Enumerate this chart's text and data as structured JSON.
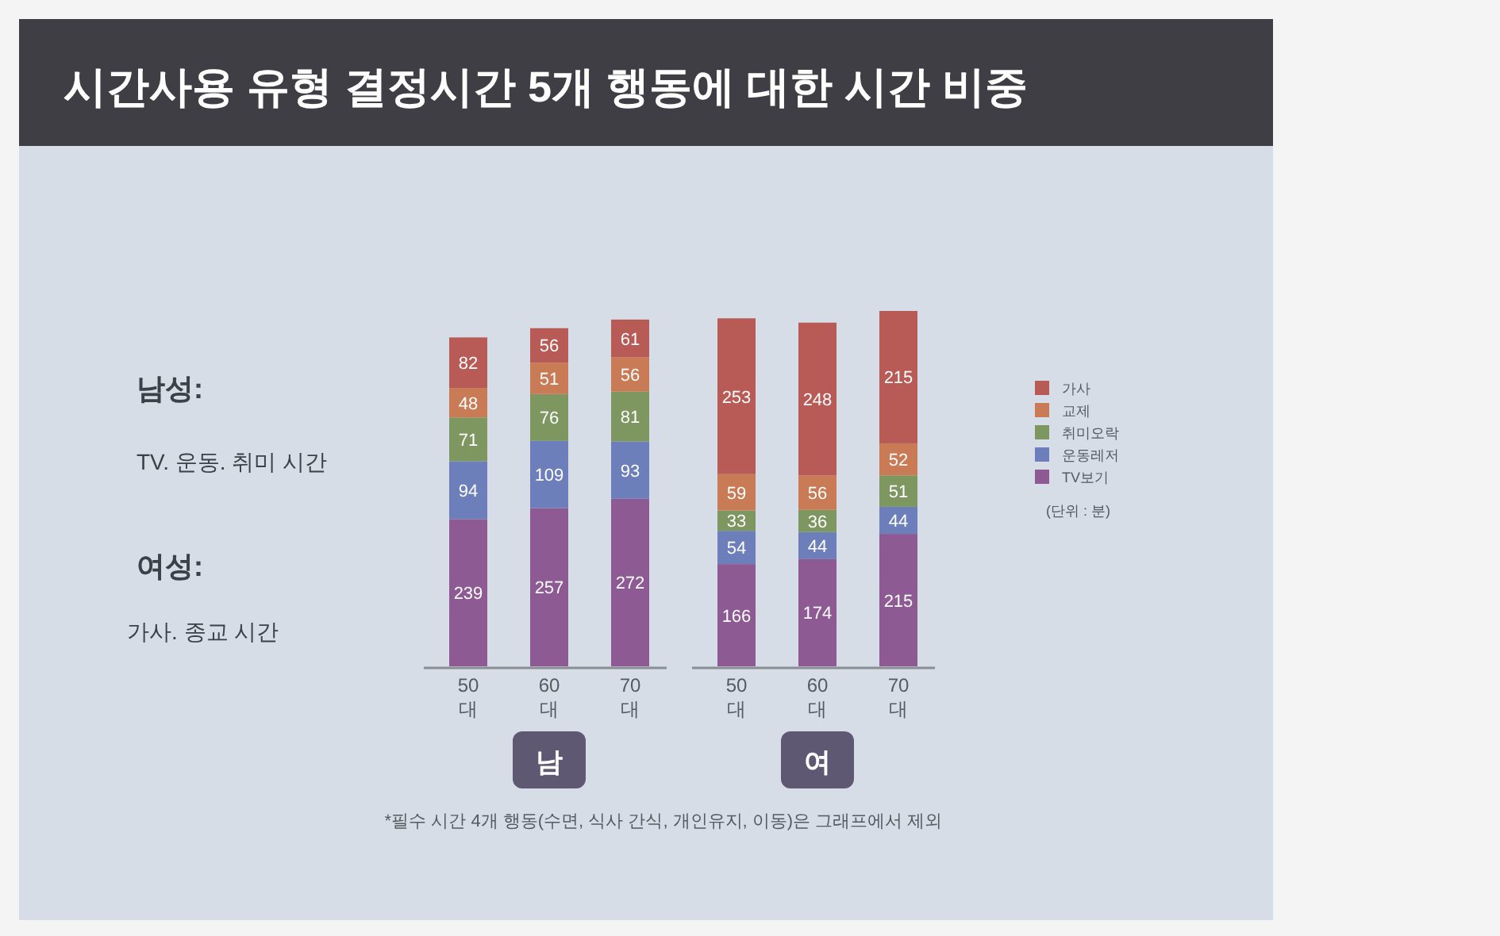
{
  "chart_data": {
    "type": "bar",
    "stacked": true,
    "title": "시간사용 유형 결정시간 5개 행동에 대한 시간 비중",
    "categories": [
      "50대",
      "60대",
      "70대",
      "50대",
      "60대",
      "70대"
    ],
    "series": [
      {
        "name": "TV보기",
        "color": "#8e5a94",
        "values": [
          239,
          257,
          272,
          166,
          174,
          215
        ]
      },
      {
        "name": "운동레저",
        "color": "#6d7fba",
        "values": [
          94,
          109,
          93,
          54,
          44,
          44
        ]
      },
      {
        "name": "취미오락",
        "color": "#7e9660",
        "values": [
          71,
          76,
          81,
          33,
          36,
          51
        ]
      },
      {
        "name": "교제",
        "color": "#c97b55",
        "values": [
          48,
          51,
          56,
          59,
          56,
          52
        ]
      },
      {
        "name": "가사",
        "color": "#b85a55",
        "values": [
          82,
          56,
          61,
          253,
          248,
          215
        ]
      }
    ],
    "data_labels": true,
    "legend": "right",
    "annotations": [
      "남성:",
      "TV. 운동. 취미 시간",
      "여성:",
      "가사. 종교 시간",
      "남",
      "여",
      "(단위 : 분)",
      "*필수 시간 4개 행동(수면, 식사 간식, 개인유지, 이동)은 그래프에서 제외"
    ]
  }
}
